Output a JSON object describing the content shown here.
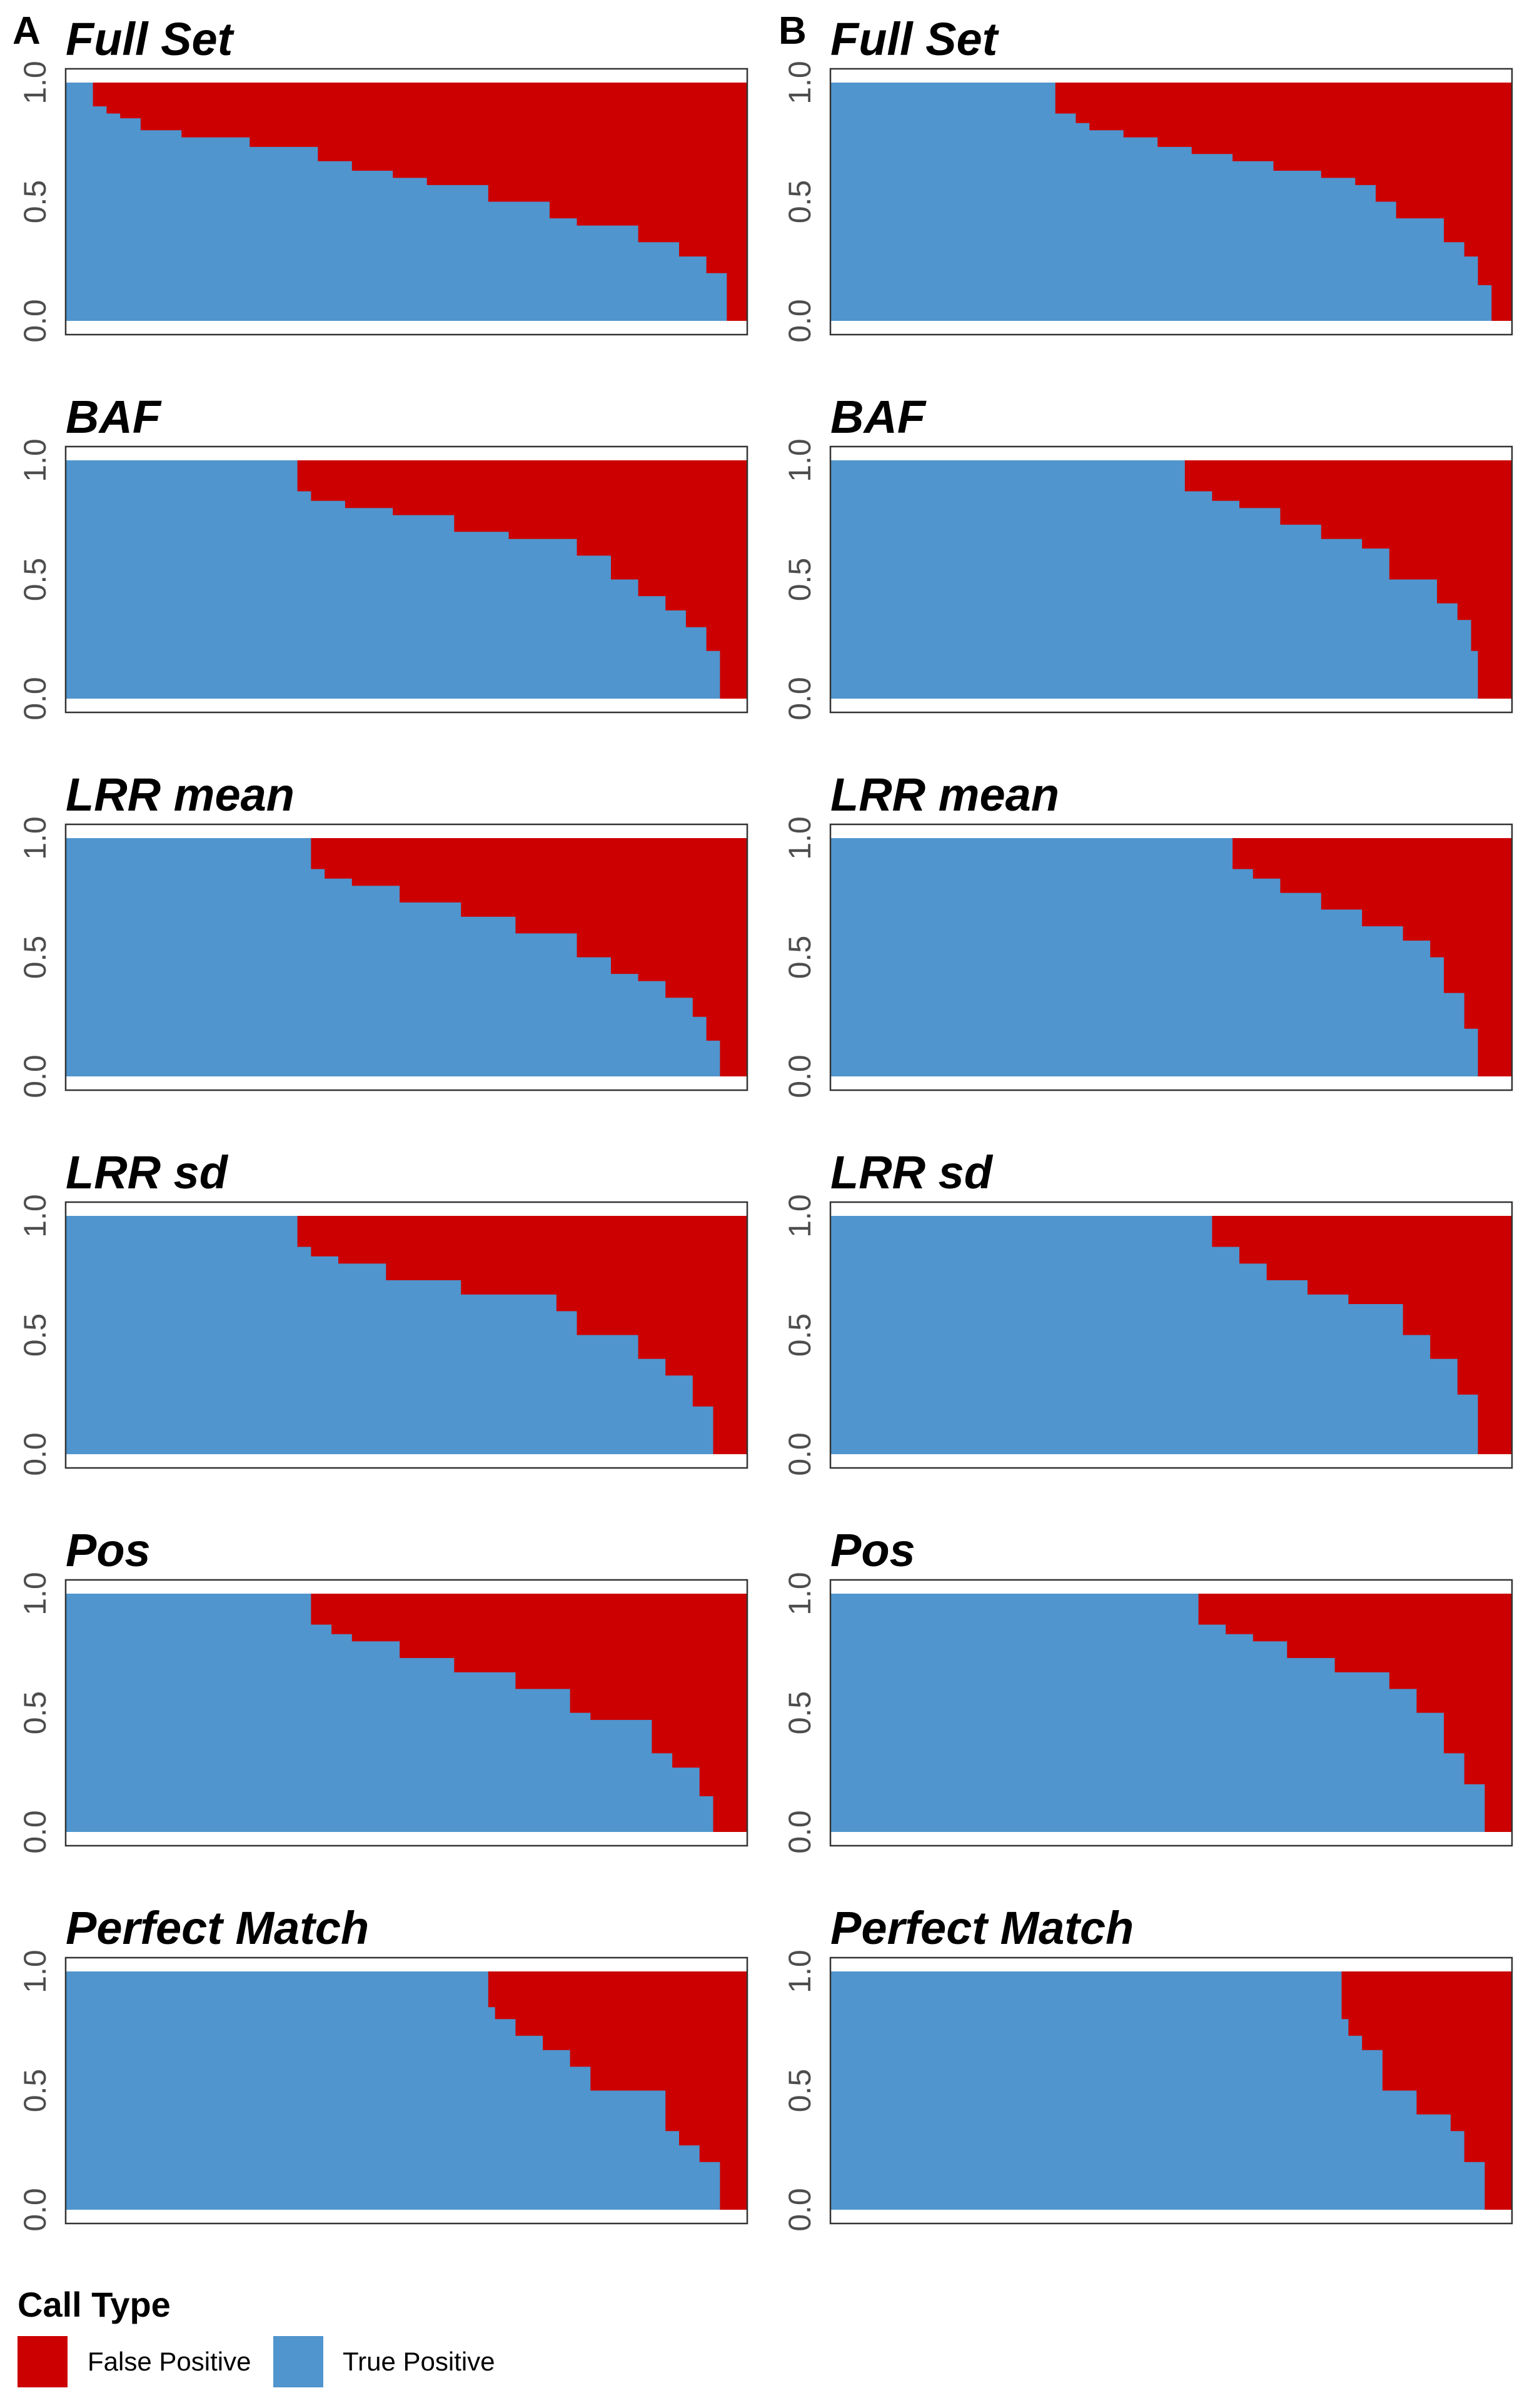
{
  "panel_letters": [
    "A",
    "B"
  ],
  "colors": {
    "false_positive": "#CC0000",
    "true_positive": "#5095CE",
    "frame": "#333333"
  },
  "legend": {
    "title": "Call Type",
    "items": [
      {
        "label": "False Positive",
        "color": "#CC0000"
      },
      {
        "label": "True Positive",
        "color": "#5095CE"
      }
    ]
  },
  "chart_data": [
    {
      "type": "area",
      "column": "A",
      "title": "Full Set",
      "ylim": [
        0,
        1
      ],
      "yticks": [
        "0.0",
        "0.5",
        "1.0"
      ],
      "series": [
        {
          "name": "True Positive",
          "x": [
            0,
            0.04,
            0.06,
            0.08,
            0.11,
            0.17,
            0.27,
            0.37,
            0.42,
            0.48,
            0.53,
            0.62,
            0.71,
            0.75,
            0.84,
            0.9,
            0.94,
            0.97
          ],
          "y": [
            1.0,
            0.9,
            0.87,
            0.85,
            0.8,
            0.77,
            0.73,
            0.67,
            0.63,
            0.6,
            0.57,
            0.5,
            0.43,
            0.4,
            0.33,
            0.27,
            0.2,
            0.1
          ]
        }
      ]
    },
    {
      "type": "area",
      "column": "B",
      "title": "Full Set",
      "ylim": [
        0,
        1
      ],
      "yticks": [
        "0.0",
        "0.5",
        "1.0"
      ],
      "series": [
        {
          "name": "True Positive",
          "x": [
            0,
            0.33,
            0.36,
            0.38,
            0.43,
            0.48,
            0.53,
            0.59,
            0.65,
            0.72,
            0.77,
            0.8,
            0.83,
            0.9,
            0.93,
            0.95,
            0.97
          ],
          "y": [
            1.0,
            0.87,
            0.83,
            0.8,
            0.77,
            0.73,
            0.7,
            0.67,
            0.63,
            0.6,
            0.57,
            0.5,
            0.43,
            0.33,
            0.27,
            0.15,
            0.0
          ]
        }
      ]
    },
    {
      "type": "area",
      "column": "A",
      "title": "BAF",
      "ylim": [
        0,
        1
      ],
      "yticks": [
        "0.0",
        "0.5",
        "1.0"
      ],
      "series": [
        {
          "name": "True Positive",
          "x": [
            0,
            0.34,
            0.36,
            0.41,
            0.48,
            0.57,
            0.65,
            0.75,
            0.8,
            0.84,
            0.88,
            0.91,
            0.94,
            0.96
          ],
          "y": [
            1.0,
            0.87,
            0.83,
            0.8,
            0.77,
            0.7,
            0.67,
            0.6,
            0.5,
            0.43,
            0.37,
            0.3,
            0.2,
            0.0
          ]
        }
      ]
    },
    {
      "type": "area",
      "column": "B",
      "title": "BAF",
      "ylim": [
        0,
        1
      ],
      "yticks": [
        "0.0",
        "0.5",
        "1.0"
      ],
      "series": [
        {
          "name": "True Positive",
          "x": [
            0,
            0.52,
            0.56,
            0.6,
            0.66,
            0.72,
            0.78,
            0.82,
            0.89,
            0.92,
            0.94,
            0.95
          ],
          "y": [
            1.0,
            0.87,
            0.83,
            0.8,
            0.73,
            0.67,
            0.63,
            0.5,
            0.4,
            0.33,
            0.2,
            0.0
          ]
        }
      ]
    },
    {
      "type": "area",
      "column": "A",
      "title": "LRR mean",
      "ylim": [
        0,
        1
      ],
      "yticks": [
        "0.0",
        "0.5",
        "1.0"
      ],
      "series": [
        {
          "name": "True Positive",
          "x": [
            0,
            0.36,
            0.38,
            0.42,
            0.49,
            0.58,
            0.66,
            0.75,
            0.8,
            0.84,
            0.88,
            0.92,
            0.94,
            0.96
          ],
          "y": [
            1.0,
            0.87,
            0.83,
            0.8,
            0.73,
            0.67,
            0.6,
            0.5,
            0.43,
            0.4,
            0.33,
            0.25,
            0.15,
            0.0
          ]
        }
      ]
    },
    {
      "type": "area",
      "column": "B",
      "title": "LRR mean",
      "ylim": [
        0,
        1
      ],
      "yticks": [
        "0.0",
        "0.5",
        "1.0"
      ],
      "series": [
        {
          "name": "True Positive",
          "x": [
            0,
            0.59,
            0.62,
            0.66,
            0.72,
            0.78,
            0.84,
            0.88,
            0.9,
            0.93,
            0.95
          ],
          "y": [
            1.0,
            0.87,
            0.83,
            0.77,
            0.7,
            0.63,
            0.57,
            0.5,
            0.35,
            0.2,
            0.0
          ]
        }
      ]
    },
    {
      "type": "area",
      "column": "A",
      "title": "LRR sd",
      "ylim": [
        0,
        1
      ],
      "yticks": [
        "0.0",
        "0.5",
        "1.0"
      ],
      "series": [
        {
          "name": "True Positive",
          "x": [
            0,
            0.34,
            0.36,
            0.4,
            0.47,
            0.58,
            0.72,
            0.75,
            0.84,
            0.88,
            0.92,
            0.95
          ],
          "y": [
            1.0,
            0.87,
            0.83,
            0.8,
            0.73,
            0.67,
            0.6,
            0.5,
            0.4,
            0.33,
            0.2,
            0.0
          ]
        }
      ]
    },
    {
      "type": "area",
      "column": "B",
      "title": "LRR sd",
      "ylim": [
        0,
        1
      ],
      "yticks": [
        "0.0",
        "0.5",
        "1.0"
      ],
      "series": [
        {
          "name": "True Positive",
          "x": [
            0,
            0.56,
            0.6,
            0.64,
            0.7,
            0.76,
            0.84,
            0.88,
            0.92,
            0.95
          ],
          "y": [
            1.0,
            0.87,
            0.8,
            0.73,
            0.67,
            0.63,
            0.5,
            0.4,
            0.25,
            0.0
          ]
        }
      ]
    },
    {
      "type": "area",
      "column": "A",
      "title": "Pos",
      "ylim": [
        0,
        1
      ],
      "yticks": [
        "0.0",
        "0.5",
        "1.0"
      ],
      "series": [
        {
          "name": "True Positive",
          "x": [
            0,
            0.36,
            0.39,
            0.42,
            0.49,
            0.57,
            0.66,
            0.74,
            0.77,
            0.86,
            0.89,
            0.93,
            0.95
          ],
          "y": [
            1.0,
            0.87,
            0.83,
            0.8,
            0.73,
            0.67,
            0.6,
            0.5,
            0.47,
            0.33,
            0.27,
            0.15,
            0.0
          ]
        }
      ]
    },
    {
      "type": "area",
      "column": "B",
      "title": "Pos",
      "ylim": [
        0,
        1
      ],
      "yticks": [
        "0.0",
        "0.5",
        "1.0"
      ],
      "series": [
        {
          "name": "True Positive",
          "x": [
            0,
            0.54,
            0.58,
            0.62,
            0.67,
            0.74,
            0.82,
            0.86,
            0.9,
            0.93,
            0.96
          ],
          "y": [
            1.0,
            0.87,
            0.83,
            0.8,
            0.73,
            0.67,
            0.6,
            0.5,
            0.33,
            0.2,
            0.0
          ]
        }
      ]
    },
    {
      "type": "area",
      "column": "A",
      "title": "Perfect Match",
      "ylim": [
        0,
        1
      ],
      "yticks": [
        "0.0",
        "0.5",
        "1.0"
      ],
      "series": [
        {
          "name": "True Positive",
          "x": [
            0,
            0.62,
            0.63,
            0.66,
            0.7,
            0.74,
            0.77,
            0.88,
            0.9,
            0.93,
            0.96
          ],
          "y": [
            1.0,
            0.85,
            0.8,
            0.73,
            0.67,
            0.6,
            0.5,
            0.33,
            0.27,
            0.2,
            0.0
          ]
        }
      ]
    },
    {
      "type": "area",
      "column": "B",
      "title": "Perfect Match",
      "ylim": [
        0,
        1
      ],
      "yticks": [
        "0.0",
        "0.5",
        "1.0"
      ],
      "series": [
        {
          "name": "True Positive",
          "x": [
            0,
            0.75,
            0.76,
            0.78,
            0.81,
            0.86,
            0.91,
            0.93,
            0.96
          ],
          "y": [
            1.0,
            0.8,
            0.73,
            0.67,
            0.5,
            0.4,
            0.33,
            0.2,
            0.0
          ]
        }
      ]
    }
  ]
}
